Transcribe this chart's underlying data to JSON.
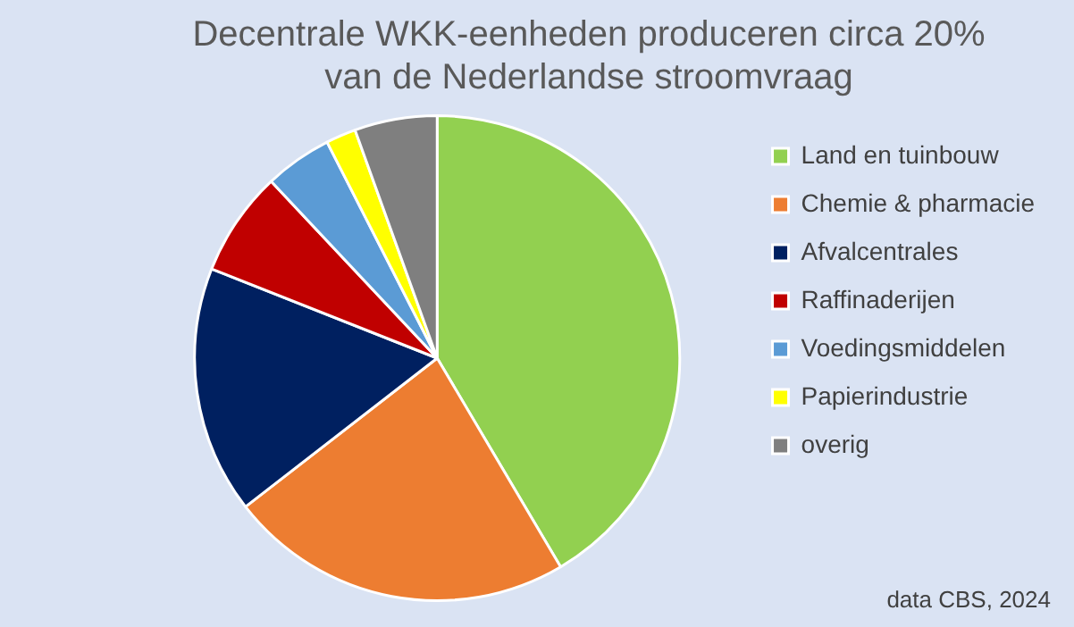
{
  "chart_data": {
    "type": "pie",
    "title": "Decentrale WKK-eenheden produceren circa 20%\nvan de Nederlandse stroomvraag",
    "categories": [
      "Land en tuinbouw",
      "Chemie & pharmacie",
      "Afvalcentrales",
      "Raffinaderijen",
      "Voedingsmiddelen",
      "Papierindustrie",
      "overig"
    ],
    "values": [
      41.5,
      23,
      16.5,
      7,
      4.5,
      2,
      5.5
    ],
    "colors": [
      "#92d050",
      "#ed7d31",
      "#002060",
      "#c00000",
      "#5b9bd5",
      "#ffff00",
      "#7f7f7f"
    ],
    "legend": "right",
    "annotations": [
      "data CBS, 2024"
    ]
  }
}
